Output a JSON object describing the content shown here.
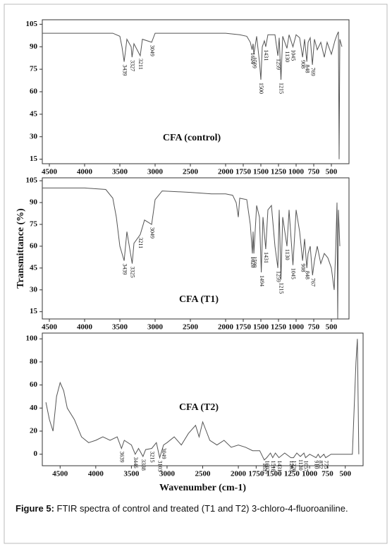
{
  "chart_data": [
    {
      "type": "line",
      "title": "CFA (control)",
      "color": "#555555",
      "x": [
        4600,
        4000,
        3600,
        3500,
        3470,
        3439,
        3400,
        3340,
        3327,
        3300,
        3211,
        3180,
        3049,
        3000,
        2500,
        2000,
        1800,
        1700,
        1650,
        1624,
        1610,
        1599,
        1560,
        1520,
        1500,
        1480,
        1450,
        1431,
        1400,
        1300,
        1259,
        1240,
        1215,
        1190,
        1130,
        1100,
        1045,
        1000,
        950,
        908,
        880,
        848,
        830,
        800,
        769,
        740,
        700,
        650,
        600,
        560,
        500,
        450,
        420,
        400,
        390,
        380,
        350
      ],
      "values": [
        99,
        99,
        99,
        97,
        90,
        80,
        95,
        90,
        83,
        92,
        84,
        95,
        93,
        99,
        99,
        99,
        98,
        97,
        93,
        88,
        92,
        85,
        97,
        80,
        68,
        90,
        94,
        90,
        98,
        98,
        84,
        96,
        68,
        97,
        89,
        98,
        90,
        98,
        96,
        83,
        95,
        80,
        93,
        96,
        78,
        95,
        88,
        93,
        83,
        93,
        85,
        94,
        98,
        100,
        15,
        95,
        90
      ],
      "xlim": [
        4600,
        250
      ],
      "ylim": [
        12,
        108
      ],
      "xticks": [
        4500,
        4000,
        3500,
        3000,
        2500,
        2000,
        1750,
        1500,
        1250,
        1000,
        750,
        500
      ],
      "yticks": [
        15,
        30,
        45,
        60,
        75,
        90,
        105
      ],
      "peaks": [
        3439,
        3327,
        3211,
        3049,
        1624,
        1599,
        1500,
        1431,
        1259,
        1215,
        1130,
        1045,
        908,
        848,
        769
      ]
    },
    {
      "type": "line",
      "title": "CFA (T1)",
      "color": "#555555",
      "ylabel": "Transmittance (%)",
      "x": [
        4600,
        4000,
        3700,
        3600,
        3550,
        3500,
        3439,
        3400,
        3325,
        3300,
        3211,
        3150,
        3049,
        3000,
        2900,
        2500,
        2200,
        2000,
        1900,
        1850,
        1820,
        1800,
        1700,
        1650,
        1620,
        1610,
        1599,
        1560,
        1520,
        1494,
        1470,
        1431,
        1400,
        1350,
        1300,
        1259,
        1240,
        1215,
        1190,
        1130,
        1100,
        1045,
        1000,
        950,
        908,
        880,
        848,
        830,
        800,
        767,
        740,
        700,
        650,
        600,
        550,
        500,
        460,
        440,
        420,
        410,
        400,
        380
      ],
      "values": [
        100,
        100,
        99,
        93,
        80,
        60,
        50,
        70,
        48,
        62,
        68,
        78,
        75,
        92,
        98,
        97,
        96,
        96,
        95,
        90,
        80,
        93,
        92,
        75,
        55,
        70,
        55,
        88,
        80,
        42,
        80,
        58,
        85,
        88,
        60,
        45,
        85,
        37,
        80,
        60,
        85,
        47,
        85,
        70,
        50,
        65,
        45,
        55,
        60,
        40,
        50,
        60,
        48,
        55,
        52,
        45,
        30,
        55,
        90,
        10,
        85,
        60
      ],
      "xlim": [
        4600,
        250
      ],
      "ylim": [
        10,
        107
      ],
      "xticks": [
        4500,
        4000,
        3500,
        3000,
        2500,
        2000,
        1750,
        1500,
        1250,
        1000,
        750,
        500
      ],
      "yticks": [
        15,
        30,
        45,
        60,
        75,
        90,
        105
      ],
      "peaks": [
        3439,
        3325,
        3211,
        3049,
        1620,
        1599,
        1494,
        1431,
        1259,
        1215,
        1130,
        1045,
        908,
        848,
        767
      ]
    },
    {
      "type": "line",
      "title": "CFA (T2)",
      "color": "#555555",
      "xlabel": "Wavenumber (cm-1)",
      "x": [
        4700,
        4650,
        4600,
        4550,
        4500,
        4450,
        4400,
        4300,
        4200,
        4100,
        4000,
        3900,
        3800,
        3700,
        3639,
        3600,
        3500,
        3446,
        3400,
        3338,
        3300,
        3215,
        3150,
        3103,
        3049,
        3000,
        2900,
        2800,
        2700,
        2600,
        2550,
        2500,
        2450,
        2400,
        2300,
        2200,
        2100,
        2000,
        1900,
        1800,
        1700,
        1637,
        1602,
        1550,
        1518,
        1480,
        1431,
        1350,
        1263,
        1226,
        1180,
        1130,
        1080,
        1057,
        1000,
        910,
        880,
        852,
        800,
        775,
        700,
        600,
        500,
        400,
        350,
        330,
        310
      ],
      "values": [
        45,
        30,
        20,
        50,
        62,
        55,
        40,
        30,
        15,
        10,
        12,
        15,
        12,
        15,
        5,
        12,
        8,
        0,
        5,
        -2,
        4,
        5,
        10,
        -3,
        8,
        10,
        15,
        8,
        18,
        25,
        15,
        28,
        20,
        12,
        8,
        12,
        6,
        8,
        6,
        3,
        3,
        -5,
        -3,
        1,
        -3,
        1,
        -3,
        1,
        -3,
        -3,
        1,
        -2,
        1,
        -3,
        0,
        -3,
        0,
        -3,
        0,
        -3,
        0,
        0,
        0,
        0,
        80,
        100,
        0
      ],
      "xlim": [
        4750,
        250
      ],
      "ylim": [
        -10,
        105
      ],
      "xticks": [
        4500,
        4000,
        3500,
        3000,
        2500,
        2000,
        1750,
        1500,
        1250,
        1000,
        750,
        500
      ],
      "yticks": [
        0,
        20,
        40,
        60,
        80,
        100
      ],
      "peaks": [
        3639,
        3446,
        3338,
        3215,
        3103,
        3049,
        1637,
        1602,
        1518,
        1431,
        1263,
        1226,
        1130,
        1057,
        910,
        852,
        775
      ]
    }
  ],
  "caption": {
    "label": "Figure 5:",
    "text": "FTIR spectra of control and treated (T1 and T2) 3-chloro-4-fluoroaniline."
  }
}
